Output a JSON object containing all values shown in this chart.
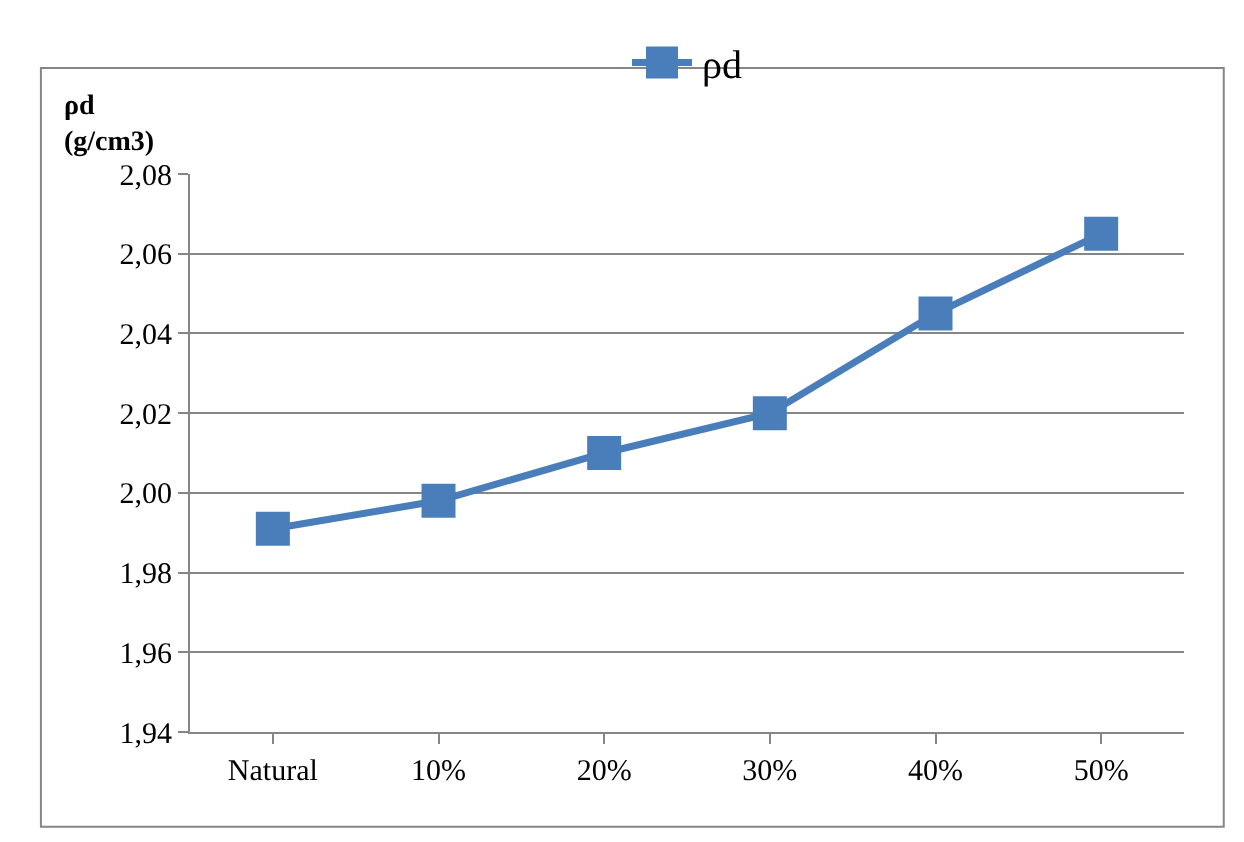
{
  "chart_data": {
    "type": "line",
    "ylabel": "ρd\n(g/cm3)",
    "categories": [
      "Natural",
      "10%",
      "20%",
      "30%",
      "40%",
      "50%"
    ],
    "series": [
      {
        "name": "ρd",
        "color": "#4a7ebb",
        "values": [
          1.991,
          1.998,
          2.01,
          2.02,
          2.045,
          2.065
        ]
      }
    ],
    "ylim": [
      1.94,
      2.08
    ],
    "yticks": [
      {
        "value": 1.94,
        "label": "1,94"
      },
      {
        "value": 1.96,
        "label": "1,96"
      },
      {
        "value": 1.98,
        "label": "1,98"
      },
      {
        "value": 2.0,
        "label": "2,00"
      },
      {
        "value": 2.02,
        "label": "2,02"
      },
      {
        "value": 2.04,
        "label": "2,04"
      },
      {
        "value": 2.06,
        "label": "2,06"
      },
      {
        "value": 2.08,
        "label": "2,08"
      }
    ],
    "grid": "y",
    "legend": "top",
    "marker": "square",
    "line_style": "solid"
  }
}
